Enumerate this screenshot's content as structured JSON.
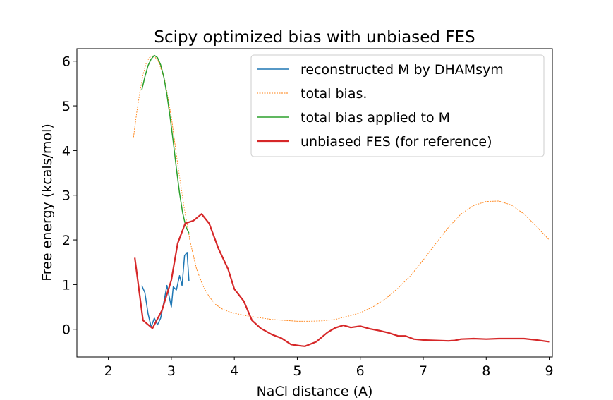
{
  "chart_data": {
    "type": "line",
    "title": "Scipy optimized bias with unbiased FES",
    "xlabel": "NaCl distance (A)",
    "ylabel": "Free energy (kcals/mol)",
    "xlim": [
      1.5,
      9.05
    ],
    "ylim": [
      -0.62,
      6.28
    ],
    "xticks": [
      2,
      3,
      4,
      5,
      6,
      7,
      8,
      9
    ],
    "yticks": [
      0,
      1,
      2,
      3,
      4,
      5,
      6
    ],
    "grid": false,
    "legend_position": "top-right",
    "series": [
      {
        "name": "reconstructed M by DHAMsym",
        "color": "#1f77b4",
        "style": "solid",
        "points": [
          [
            2.53,
            0.98
          ],
          [
            2.58,
            0.82
          ],
          [
            2.63,
            0.35
          ],
          [
            2.68,
            0.05
          ],
          [
            2.73,
            0.25
          ],
          [
            2.78,
            0.1
          ],
          [
            2.83,
            0.25
          ],
          [
            2.88,
            0.6
          ],
          [
            2.93,
            0.98
          ],
          [
            2.97,
            0.7
          ],
          [
            3.0,
            0.5
          ],
          [
            3.03,
            0.95
          ],
          [
            3.08,
            0.88
          ],
          [
            3.13,
            1.2
          ],
          [
            3.17,
            0.98
          ],
          [
            3.21,
            1.65
          ],
          [
            3.25,
            1.72
          ],
          [
            3.28,
            1.08
          ]
        ]
      },
      {
        "name": "total bias.",
        "color": "#ff7f0e",
        "style": "dotted",
        "points": [
          [
            2.4,
            4.3
          ],
          [
            2.45,
            4.85
          ],
          [
            2.5,
            5.3
          ],
          [
            2.55,
            5.7
          ],
          [
            2.6,
            5.95
          ],
          [
            2.65,
            6.08
          ],
          [
            2.72,
            6.13
          ],
          [
            2.8,
            5.98
          ],
          [
            2.9,
            5.55
          ],
          [
            3.0,
            4.75
          ],
          [
            3.1,
            3.7
          ],
          [
            3.2,
            2.75
          ],
          [
            3.3,
            1.95
          ],
          [
            3.4,
            1.35
          ],
          [
            3.5,
            0.98
          ],
          [
            3.6,
            0.73
          ],
          [
            3.7,
            0.56
          ],
          [
            3.8,
            0.46
          ],
          [
            3.9,
            0.4
          ],
          [
            4.0,
            0.36
          ],
          [
            4.2,
            0.3
          ],
          [
            4.4,
            0.26
          ],
          [
            4.6,
            0.22
          ],
          [
            4.8,
            0.2
          ],
          [
            5.0,
            0.18
          ],
          [
            5.2,
            0.18
          ],
          [
            5.4,
            0.19
          ],
          [
            5.6,
            0.22
          ],
          [
            5.8,
            0.29
          ],
          [
            6.0,
            0.37
          ],
          [
            6.2,
            0.5
          ],
          [
            6.4,
            0.68
          ],
          [
            6.6,
            0.92
          ],
          [
            6.8,
            1.2
          ],
          [
            7.0,
            1.55
          ],
          [
            7.2,
            1.92
          ],
          [
            7.4,
            2.28
          ],
          [
            7.6,
            2.58
          ],
          [
            7.8,
            2.77
          ],
          [
            8.0,
            2.86
          ],
          [
            8.2,
            2.87
          ],
          [
            8.4,
            2.78
          ],
          [
            8.6,
            2.58
          ],
          [
            8.8,
            2.3
          ],
          [
            9.0,
            2.0
          ]
        ]
      },
      {
        "name": "total bias applied to M",
        "color": "#2ca02c",
        "style": "solid",
        "points": [
          [
            2.53,
            5.35
          ],
          [
            2.58,
            5.65
          ],
          [
            2.63,
            5.9
          ],
          [
            2.68,
            6.05
          ],
          [
            2.73,
            6.13
          ],
          [
            2.78,
            6.08
          ],
          [
            2.83,
            5.92
          ],
          [
            2.88,
            5.65
          ],
          [
            2.93,
            5.25
          ],
          [
            2.98,
            4.75
          ],
          [
            3.03,
            4.2
          ],
          [
            3.08,
            3.6
          ],
          [
            3.13,
            3.05
          ],
          [
            3.18,
            2.6
          ],
          [
            3.23,
            2.3
          ],
          [
            3.28,
            2.15
          ]
        ]
      },
      {
        "name": "unbiased FES (for reference)",
        "color": "#d62728",
        "style": "solid",
        "points": [
          [
            2.42,
            1.6
          ],
          [
            2.55,
            0.2
          ],
          [
            2.7,
            0.02
          ],
          [
            2.85,
            0.42
          ],
          [
            3.0,
            1.1
          ],
          [
            3.1,
            1.92
          ],
          [
            3.22,
            2.37
          ],
          [
            3.35,
            2.43
          ],
          [
            3.48,
            2.58
          ],
          [
            3.6,
            2.37
          ],
          [
            3.75,
            1.8
          ],
          [
            3.9,
            1.35
          ],
          [
            4.0,
            0.9
          ],
          [
            4.15,
            0.63
          ],
          [
            4.28,
            0.2
          ],
          [
            4.42,
            0.02
          ],
          [
            4.6,
            -0.12
          ],
          [
            4.75,
            -0.2
          ],
          [
            4.9,
            -0.34
          ],
          [
            5.05,
            -0.37
          ],
          [
            5.12,
            -0.38
          ],
          [
            5.3,
            -0.28
          ],
          [
            5.48,
            -0.07
          ],
          [
            5.6,
            0.03
          ],
          [
            5.73,
            0.09
          ],
          [
            5.85,
            0.04
          ],
          [
            6.0,
            0.07
          ],
          [
            6.15,
            0.01
          ],
          [
            6.3,
            -0.03
          ],
          [
            6.45,
            -0.08
          ],
          [
            6.6,
            -0.15
          ],
          [
            6.72,
            -0.15
          ],
          [
            6.85,
            -0.22
          ],
          [
            7.0,
            -0.24
          ],
          [
            7.2,
            -0.25
          ],
          [
            7.4,
            -0.26
          ],
          [
            7.5,
            -0.25
          ],
          [
            7.6,
            -0.22
          ],
          [
            7.8,
            -0.21
          ],
          [
            8.0,
            -0.22
          ],
          [
            8.2,
            -0.21
          ],
          [
            8.4,
            -0.21
          ],
          [
            8.6,
            -0.21
          ],
          [
            8.8,
            -0.24
          ],
          [
            9.0,
            -0.28
          ]
        ]
      }
    ]
  }
}
